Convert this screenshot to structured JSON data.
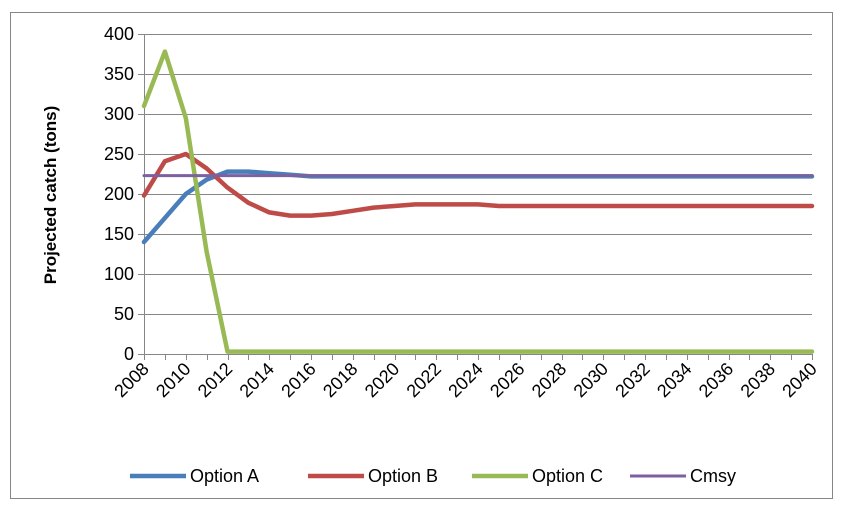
{
  "chart_data": {
    "type": "line",
    "title": "",
    "xlabel": "",
    "ylabel": "Projected catch  (tons)",
    "ylim": [
      0,
      400
    ],
    "yticks": [
      0,
      50,
      100,
      150,
      200,
      250,
      300,
      350,
      400
    ],
    "xlim": [
      2008,
      2040
    ],
    "xtick_labels": [
      "2008",
      "2010",
      "2012",
      "2014",
      "2016",
      "2018",
      "2020",
      "2022",
      "2024",
      "2026",
      "2028",
      "2030",
      "2032",
      "2034",
      "2036",
      "2038",
      "2040"
    ],
    "grid": "horizontal",
    "legend_position": "bottom",
    "x": [
      2008,
      2009,
      2010,
      2011,
      2012,
      2013,
      2014,
      2015,
      2016,
      2017,
      2018,
      2019,
      2020,
      2021,
      2022,
      2023,
      2024,
      2025,
      2026,
      2027,
      2028,
      2029,
      2030,
      2031,
      2032,
      2033,
      2034,
      2035,
      2036,
      2037,
      2038,
      2039,
      2040
    ],
    "series": [
      {
        "name": "Option A",
        "color": "#4a7ebb",
        "values": [
          140,
          170,
          200,
          218,
          228,
          228,
          226,
          224,
          222,
          222,
          222,
          222,
          222,
          222,
          222,
          222,
          222,
          222,
          222,
          222,
          222,
          222,
          222,
          222,
          222,
          222,
          222,
          222,
          222,
          222,
          222,
          222,
          222
        ]
      },
      {
        "name": "Option B",
        "color": "#be4b48",
        "values": [
          198,
          241,
          250,
          232,
          208,
          189,
          177,
          173,
          173,
          175,
          179,
          183,
          185,
          187,
          187,
          187,
          187,
          185,
          185,
          185,
          185,
          185,
          185,
          185,
          185,
          185,
          185,
          185,
          185,
          185,
          185,
          185,
          185
        ]
      },
      {
        "name": "Option C",
        "color": "#98b954",
        "values": [
          310,
          378,
          295,
          128,
          3,
          3,
          3,
          3,
          3,
          3,
          3,
          3,
          3,
          3,
          3,
          3,
          3,
          3,
          3,
          3,
          3,
          3,
          3,
          3,
          3,
          3,
          3,
          3,
          3,
          3,
          3,
          3,
          3
        ]
      },
      {
        "name": "Cmsy",
        "color": "#7d60a0",
        "values": [
          223,
          223,
          223,
          223,
          223,
          223,
          223,
          223,
          223,
          223,
          223,
          223,
          223,
          223,
          223,
          223,
          223,
          223,
          223,
          223,
          223,
          223,
          223,
          223,
          223,
          223,
          223,
          223,
          223,
          223,
          223,
          223,
          223
        ]
      }
    ]
  }
}
